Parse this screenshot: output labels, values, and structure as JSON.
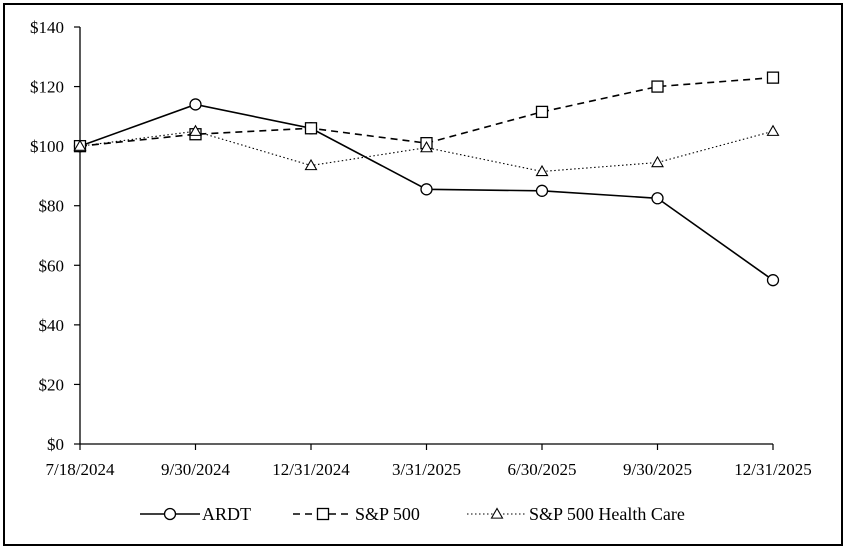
{
  "chart_data": {
    "type": "line",
    "title": "",
    "xlabel": "",
    "ylabel": "",
    "categories": [
      "7/18/2024",
      "9/30/2024",
      "12/31/2024",
      "3/31/2025",
      "6/30/2025",
      "9/30/2025",
      "12/31/2025"
    ],
    "ylim": [
      0,
      140
    ],
    "yticks": [
      "$0",
      "$20",
      "$40",
      "$60",
      "$80",
      "$100",
      "$120",
      "$140"
    ],
    "grid": false,
    "legend_position": "bottom",
    "series": [
      {
        "name": "ARDT",
        "values": [
          100,
          114,
          106,
          85.5,
          85,
          82.5,
          55
        ],
        "marker": "circle",
        "line_style": "solid",
        "color": "#000000"
      },
      {
        "name": "S&P 500",
        "values": [
          100,
          104,
          106,
          101,
          111.5,
          120,
          123
        ],
        "marker": "square",
        "line_style": "dashed",
        "color": "#000000"
      },
      {
        "name": "S&P 500 Health Care",
        "values": [
          100,
          105,
          93.5,
          99.5,
          91.5,
          94.5,
          105
        ],
        "marker": "triangle",
        "line_style": "dotted",
        "color": "#000000"
      }
    ]
  }
}
